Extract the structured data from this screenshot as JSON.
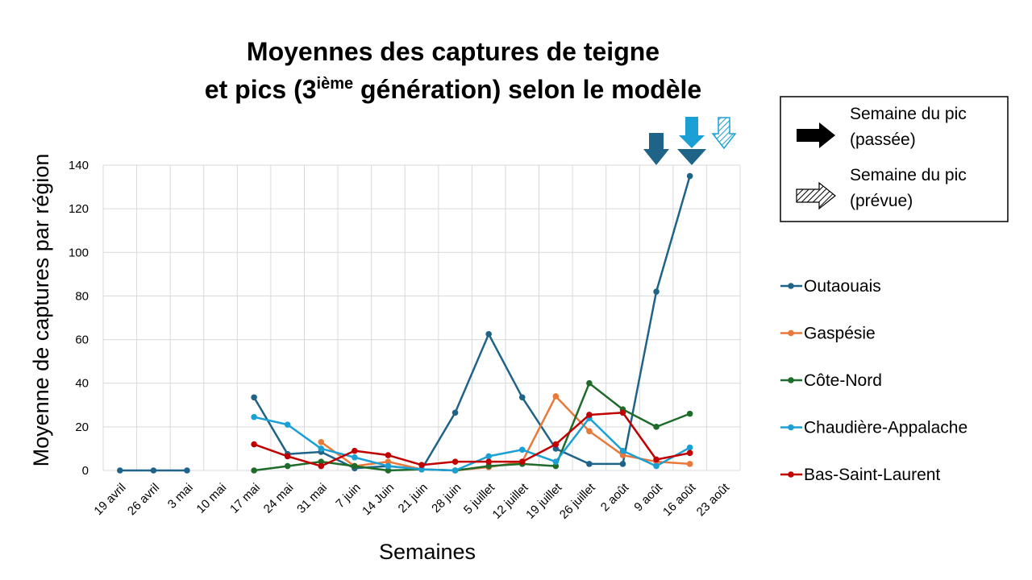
{
  "chart_data": {
    "type": "line",
    "title": [
      "Moyennes des captures de teigne",
      "et pics (3",
      "ième",
      " génération) selon le modèle"
    ],
    "x_label": "Semaines",
    "y_label": "Moyenne de captures par région",
    "categories": [
      "19 avril",
      "26 avril",
      "3 mai",
      "10 mai",
      "17 mai",
      "24 mai",
      "31 mai",
      "7 juin",
      "14 Juin",
      "21 juin",
      "28 juin",
      "5 juillet",
      "12 juillet",
      "19 juillet",
      "26 juillet",
      "2 août",
      "9 août",
      "16 août",
      "23 août"
    ],
    "series": [
      {
        "name": "Outaouais",
        "color": "#1f6388",
        "values": [
          0,
          0,
          0,
          null,
          33.5,
          7.5,
          8.5,
          1,
          2,
          0.5,
          26.5,
          62.5,
          33.5,
          10,
          3,
          3,
          82,
          135,
          null
        ]
      },
      {
        "name": "Gaspésie",
        "color": "#e8793a",
        "values": [
          null,
          null,
          null,
          null,
          null,
          null,
          13,
          2,
          4,
          0.5,
          0,
          1.5,
          4,
          34,
          18,
          7,
          4,
          3,
          null
        ]
      },
      {
        "name": "Côte-Nord",
        "color": "#1f6b2a",
        "values": [
          null,
          null,
          null,
          null,
          0,
          2,
          4,
          2,
          0,
          0.5,
          0,
          2,
          3,
          2,
          40,
          28,
          20,
          26,
          null
        ]
      },
      {
        "name": "Chaudière-Appalache",
        "color": "#1ba0d5",
        "values": [
          null,
          null,
          null,
          null,
          24.5,
          21,
          10,
          6,
          2,
          0.5,
          0,
          6.5,
          9.5,
          4,
          24,
          9,
          2,
          10.5,
          null
        ]
      },
      {
        "name": "Bas-Saint-Laurent",
        "color": "#c00000",
        "values": [
          null,
          null,
          null,
          null,
          12,
          6.5,
          2,
          9,
          7,
          2.5,
          4,
          4,
          4,
          12,
          25.5,
          26.5,
          5,
          8,
          null
        ]
      }
    ],
    "ylim": [
      0,
      140
    ],
    "yticks": [
      0,
      20,
      40,
      60,
      80,
      100,
      120,
      140
    ],
    "grid": true,
    "peak_legend": [
      "Semaine du pic (passée)",
      "Semaine du pic (prévue)"
    ]
  }
}
